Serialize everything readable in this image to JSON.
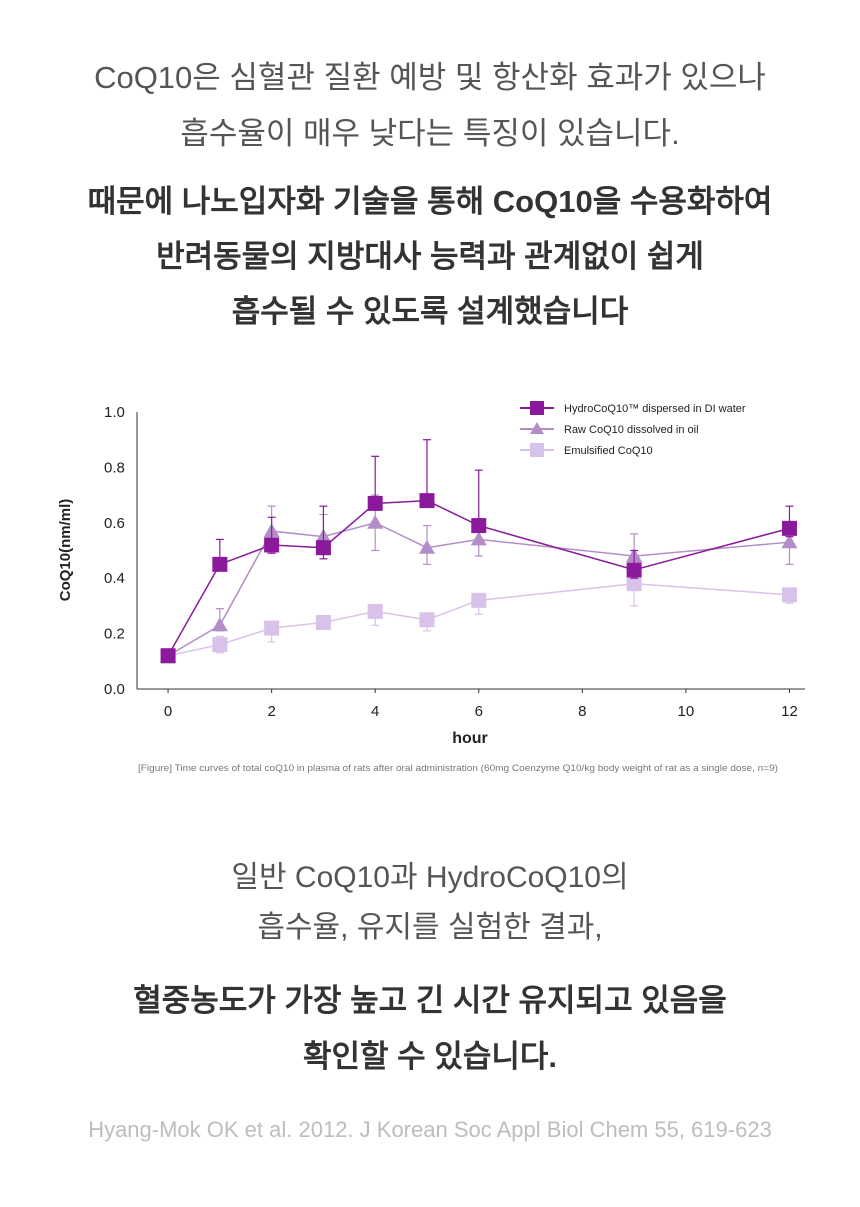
{
  "intro": {
    "line1": "CoQ10은 심혈관 질환 예방 및 항산화 효과가 있으나",
    "line2": "흡수율이 매우 낮다는 특징이 있습니다."
  },
  "headline": {
    "line1": "때문에 나노입자화 기술을 통해 CoQ10을 수용화하여",
    "line2": "반려동물의 지방대사 능력과 관계없이 쉽게",
    "line3": "흡수될 수 있도록 설계했습니다"
  },
  "chart_data": {
    "type": "line",
    "xlabel": "hour",
    "ylabel": "CoQ10(nm/ml)",
    "xlim": [
      -0.6,
      12.3
    ],
    "ylim": [
      0,
      1.0
    ],
    "xticks": [
      0,
      2,
      4,
      6,
      8,
      10,
      12
    ],
    "xtick_labels": [
      "0",
      "2",
      "4",
      "6",
      "8",
      "10",
      "12"
    ],
    "yticks": [
      0,
      0.2,
      0.4,
      0.6,
      0.8,
      1.0
    ],
    "ytick_labels": [
      "0.0",
      "0.2",
      "0.4",
      "0.6",
      "0.8",
      "1.0"
    ],
    "grid": false,
    "legend_position": "top-right",
    "series": [
      {
        "name": "HydroCoQ10™ dispersed in DI water",
        "marker": "square",
        "color": "#8a1a9b",
        "x": [
          0,
          1,
          2,
          3,
          4,
          5,
          6,
          9,
          12
        ],
        "y": [
          0.12,
          0.45,
          0.52,
          0.51,
          0.67,
          0.68,
          0.59,
          0.43,
          0.58
        ],
        "err_upper": [
          0.12,
          0.54,
          0.62,
          0.66,
          0.84,
          0.9,
          0.79,
          0.5,
          0.66
        ],
        "err_lower": [
          0.12,
          0.45,
          0.49,
          0.47,
          0.67,
          0.68,
          0.59,
          0.4,
          0.55
        ]
      },
      {
        "name": "Raw CoQ10 dissolved in oil",
        "marker": "triangle",
        "color": "#b48dc8",
        "x": [
          0,
          1,
          2,
          3,
          4,
          5,
          6,
          9,
          12
        ],
        "y": [
          0.12,
          0.23,
          0.57,
          0.55,
          0.6,
          0.51,
          0.54,
          0.48,
          0.53
        ],
        "err_upper": [
          0.12,
          0.29,
          0.66,
          0.63,
          0.7,
          0.59,
          0.59,
          0.56,
          0.58
        ],
        "err_lower": [
          0.12,
          0.21,
          0.52,
          0.5,
          0.5,
          0.45,
          0.48,
          0.44,
          0.45
        ]
      },
      {
        "name": "Emulsified CoQ10",
        "marker": "square",
        "color": "#d9c2ea",
        "x": [
          0,
          1,
          2,
          3,
          4,
          5,
          6,
          9,
          12
        ],
        "y": [
          0.12,
          0.16,
          0.22,
          0.24,
          0.28,
          0.25,
          0.32,
          0.38,
          0.34
        ],
        "err_upper": [
          0.12,
          0.19,
          0.23,
          0.25,
          0.29,
          0.26,
          0.33,
          0.39,
          0.35
        ],
        "err_lower": [
          0.12,
          0.13,
          0.17,
          0.22,
          0.23,
          0.21,
          0.27,
          0.3,
          0.31
        ]
      }
    ],
    "caption": "[Figure] Time curves of total coQ10 in plasma of rats after oral administration (60mg Coenzyme Q10/kg body weight of rat as a single dose, n=9)"
  },
  "result": {
    "line1": "일반 CoQ10과 HydroCoQ10의",
    "line2": "흡수율, 유지를 실험한 결과,"
  },
  "conclusion": {
    "line1": "혈중농도가 가장 높고 긴 시간 유지되고 있음을",
    "line2": "확인할 수 있습니다."
  },
  "reference": "Hyang-Mok OK et al. 2012. J Korean Soc Appl Biol Chem 55, 619-623"
}
